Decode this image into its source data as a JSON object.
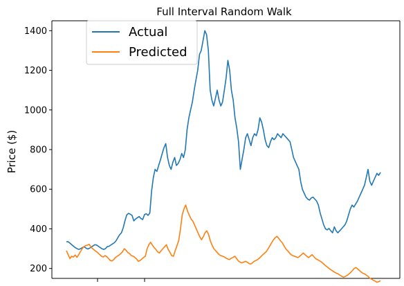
{
  "chart_data": {
    "type": "line",
    "title": "Full Interval Random Walk",
    "ylabel": "Price ($)",
    "xlabel": "",
    "ylim": [
      150,
      1450
    ],
    "yticks": [
      200,
      400,
      600,
      800,
      1000,
      1200,
      1400
    ],
    "grid": false,
    "legend_position": "upper-left",
    "series": [
      {
        "name": "Actual",
        "color": "#1f77b4",
        "values": [
          335,
          335,
          328,
          320,
          312,
          305,
          300,
          296,
          300,
          305,
          310,
          303,
          298,
          302,
          308,
          314,
          320,
          318,
          312,
          306,
          300,
          296,
          300,
          310,
          312,
          318,
          324,
          330,
          340,
          356,
          370,
          380,
          405,
          440,
          470,
          478,
          474,
          468,
          440,
          450,
          456,
          462,
          452,
          447,
          472,
          476,
          468,
          480,
          590,
          660,
          700,
          690,
          720,
          748,
          780,
          810,
          830,
          760,
          720,
          700,
          736,
          760,
          720,
          730,
          750,
          780,
          760,
          800,
          900,
          960,
          1000,
          1040,
          1100,
          1150,
          1200,
          1280,
          1300,
          1350,
          1400,
          1380,
          1300,
          1100,
          1050,
          1020,
          1060,
          1100,
          1050,
          1020,
          1040,
          1100,
          1160,
          1250,
          1200,
          1100,
          1050,
          960,
          910,
          840,
          700,
          750,
          800,
          860,
          880,
          850,
          820,
          860,
          880,
          870,
          900,
          960,
          940,
          900,
          850,
          820,
          810,
          840,
          860,
          850,
          860,
          880,
          870,
          860,
          880,
          870,
          860,
          850,
          840,
          800,
          760,
          740,
          720,
          700,
          640,
          600,
          580,
          560,
          550,
          545,
          556,
          560,
          550,
          540,
          520,
          480,
          450,
          420,
          400,
          395,
          402,
          390,
          380,
          410,
          390,
          380,
          390,
          400,
          410,
          420,
          440,
          470,
          500,
          520,
          510,
          525,
          540,
          560,
          580,
          600,
          620,
          660,
          700,
          640,
          620,
          640,
          660,
          680,
          670,
          685
        ]
      },
      {
        "name": "Predicted",
        "color": "#ff7f0e",
        "values": [
          290,
          270,
          250,
          262,
          258,
          268,
          256,
          270,
          285,
          300,
          310,
          315,
          318,
          322,
          308,
          300,
          292,
          286,
          278,
          270,
          262,
          258,
          265,
          260,
          250,
          240,
          238,
          245,
          256,
          262,
          268,
          275,
          285,
          300,
          292,
          280,
          275,
          265,
          262,
          256,
          248,
          236,
          240,
          248,
          256,
          262,
          300,
          320,
          332,
          318,
          305,
          296,
          284,
          278,
          290,
          300,
          310,
          320,
          296,
          282,
          265,
          262,
          290,
          315,
          340,
          400,
          470,
          500,
          520,
          490,
          470,
          450,
          440,
          420,
          400,
          380,
          360,
          345,
          360,
          380,
          390,
          372,
          340,
          318,
          300,
          290,
          280,
          270,
          265,
          262,
          258,
          252,
          248,
          245,
          252,
          256,
          262,
          250,
          238,
          232,
          228,
          232,
          236,
          232,
          226,
          222,
          228,
          236,
          240,
          245,
          252,
          262,
          270,
          278,
          286,
          300,
          315,
          330,
          345,
          355,
          362,
          352,
          340,
          330,
          315,
          300,
          290,
          280,
          270,
          265,
          262,
          258,
          255,
          262,
          270,
          278,
          270,
          262,
          255,
          262,
          270,
          260,
          250,
          245,
          240,
          235,
          228,
          220,
          212,
          205,
          198,
          192,
          186,
          180,
          176,
          172,
          165,
          160,
          156,
          160,
          165,
          172,
          180,
          190,
          200,
          205,
          198,
          190,
          182,
          176,
          172,
          166,
          160,
          150,
          146,
          140,
          136,
          130,
          134,
          138
        ]
      }
    ]
  }
}
